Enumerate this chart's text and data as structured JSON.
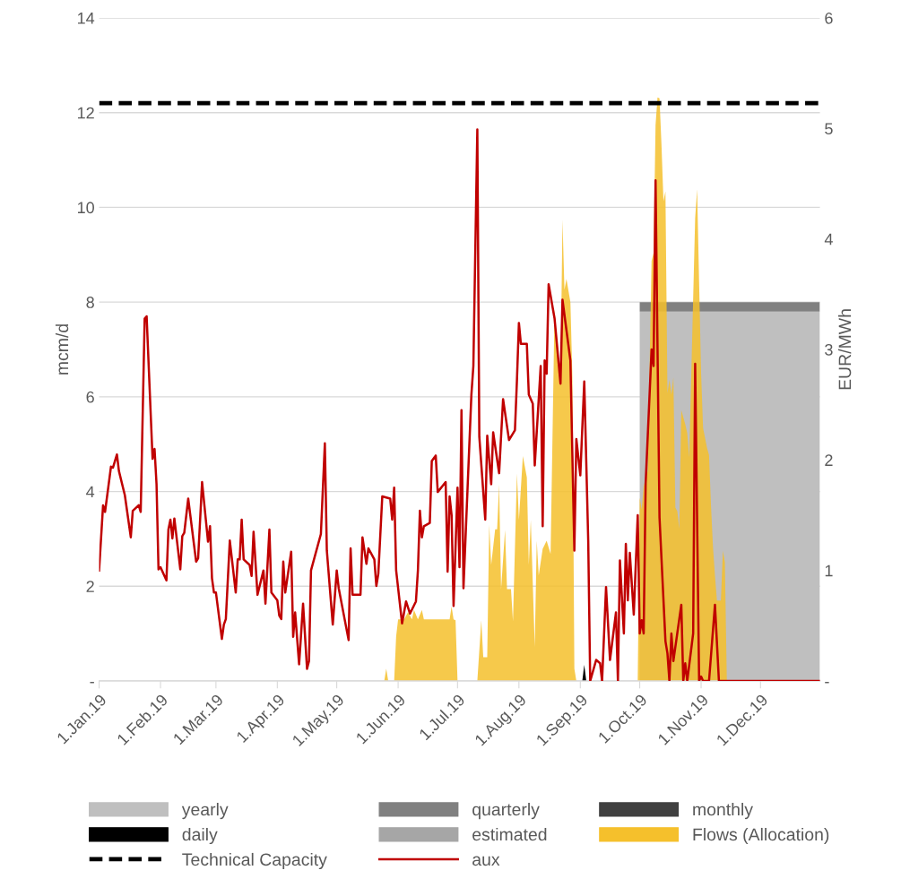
{
  "chart_data": {
    "type": "area",
    "ylabel": "mcm/d",
    "y2label": "EUR/MWh",
    "xlim": [
      "2019-01-01",
      "2019-12-31"
    ],
    "xticks": [
      {
        "value": "2019-01-01",
        "label": "1.Jan.19"
      },
      {
        "value": "2019-02-01",
        "label": "1.Feb.19"
      },
      {
        "value": "2019-03-01",
        "label": "1.Mar.19"
      },
      {
        "value": "2019-04-01",
        "label": "1.Apr.19"
      },
      {
        "value": "2019-05-01",
        "label": "1.May.19"
      },
      {
        "value": "2019-06-01",
        "label": "1.Jun.19"
      },
      {
        "value": "2019-07-01",
        "label": "1.Jul.19"
      },
      {
        "value": "2019-08-01",
        "label": "1.Aug.19"
      },
      {
        "value": "2019-09-01",
        "label": "1.Sep.19"
      },
      {
        "value": "2019-10-01",
        "label": "1.Oct.19"
      },
      {
        "value": "2019-11-01",
        "label": "1.Nov.19"
      },
      {
        "value": "2019-12-01",
        "label": "1.Dec.19"
      }
    ],
    "ylim": [
      0,
      14
    ],
    "yticks": [
      {
        "value": 0,
        "label": "-"
      },
      2,
      4,
      6,
      8,
      10,
      12,
      14
    ],
    "y2lim": [
      0,
      6
    ],
    "y2ticks": [
      {
        "value": 0,
        "label": "-"
      },
      1,
      2,
      3,
      4,
      5,
      6
    ],
    "grid": "y",
    "legend": "bottom",
    "stacked": true,
    "series": [
      {
        "name": "yearly",
        "color": "#bfbfbf",
        "x": [
          "2019-10-01",
          "2019-12-31"
        ],
        "values": [
          7.8,
          7.8
        ]
      },
      {
        "name": "quarterly",
        "color": "#808080",
        "x": [
          "2019-10-01",
          "2019-12-31"
        ],
        "values": [
          0.2,
          0.2
        ]
      },
      {
        "name": "monthly",
        "color": "#404040"
      },
      {
        "name": "daily",
        "color": "#000000",
        "x": [
          "2019-09-02",
          "2019-09-03",
          "2019-09-04"
        ],
        "values": [
          0,
          0.34,
          0
        ]
      },
      {
        "name": "estimated",
        "color": "#a6a6a6"
      },
      {
        "name": "Flows (Allocation)",
        "color": "#f5c02c",
        "x": [
          "2019-05-25",
          "2019-05-26",
          "2019-05-27",
          "2019-05-30",
          "2019-05-31",
          "2019-06-01",
          "2019-06-04",
          "2019-06-06",
          "2019-06-08",
          "2019-06-09",
          "2019-06-11",
          "2019-06-13",
          "2019-06-14",
          "2019-06-27",
          "2019-06-28",
          "2019-06-29",
          "2019-06-30",
          "2019-07-01",
          "2019-07-11",
          "2019-07-13",
          "2019-07-14",
          "2019-07-16",
          "2019-07-17",
          "2019-07-18",
          "2019-07-20",
          "2019-07-21",
          "2019-07-22",
          "2019-07-23",
          "2019-07-25",
          "2019-07-26",
          "2019-07-28",
          "2019-07-29",
          "2019-07-31",
          "2019-08-01",
          "2019-08-03",
          "2019-08-05",
          "2019-08-06",
          "2019-08-07",
          "2019-08-09",
          "2019-08-10",
          "2019-08-11",
          "2019-08-13",
          "2019-08-15",
          "2019-08-17",
          "2019-08-19",
          "2019-08-20",
          "2019-08-22",
          "2019-08-23",
          "2019-08-24",
          "2019-08-25",
          "2019-08-27",
          "2019-08-28",
          "2019-08-29",
          "2019-08-30",
          "2019-09-30",
          "2019-10-01",
          "2019-10-02",
          "2019-10-03",
          "2019-10-05",
          "2019-10-07",
          "2019-10-08",
          "2019-10-09",
          "2019-10-10",
          "2019-10-11",
          "2019-10-12",
          "2019-10-13",
          "2019-10-14",
          "2019-10-15",
          "2019-10-16",
          "2019-10-17",
          "2019-10-18",
          "2019-10-19",
          "2019-10-20",
          "2019-10-21",
          "2019-10-22",
          "2019-10-24",
          "2019-10-25",
          "2019-10-26",
          "2019-10-29",
          "2019-10-30",
          "2019-10-31",
          "2019-11-01",
          "2019-11-02",
          "2019-11-04",
          "2019-11-05",
          "2019-11-06",
          "2019-11-07",
          "2019-11-08",
          "2019-11-09",
          "2019-11-11",
          "2019-11-12",
          "2019-11-13",
          "2019-11-14"
        ],
        "values": [
          0,
          0.26,
          0,
          0,
          0.94,
          1.3,
          1.3,
          1.45,
          1.3,
          1.5,
          1.3,
          1.5,
          1.3,
          1.3,
          1.57,
          1.3,
          1.28,
          0,
          0,
          1.28,
          0.5,
          0.5,
          3.3,
          2.45,
          3.2,
          3.2,
          4.15,
          1.94,
          3.19,
          1.94,
          1.94,
          1.26,
          4.38,
          3.4,
          4.75,
          4.3,
          2.45,
          3.4,
          0.72,
          2.96,
          2.23,
          2.79,
          2.96,
          2.68,
          7.85,
          7.26,
          6.34,
          9.74,
          8.26,
          8.49,
          8.0,
          6.42,
          0.26,
          0,
          0,
          3.87,
          3.62,
          4.11,
          4.43,
          8.87,
          9.04,
          11.74,
          12.32,
          12.3,
          11.32,
          10.13,
          10.34,
          6.08,
          6.36,
          6.04,
          6.41,
          3.66,
          3.58,
          3.21,
          5.72,
          5.42,
          5.23,
          4.72,
          9.77,
          10.38,
          8.41,
          6.49,
          5.34,
          4.92,
          4.77,
          3.7,
          2.83,
          2.23,
          1.7,
          1.7,
          2.75,
          2.51,
          0
        ]
      },
      {
        "name": "Technical Capacity",
        "type": "line",
        "line_style": "dashed",
        "color": "#000000",
        "x": [
          "2019-01-01",
          "2019-12-31"
        ],
        "values": [
          12.2,
          12.2
        ]
      },
      {
        "name": "aux",
        "type": "line",
        "axis": "y2",
        "color": "#c00000",
        "x": [
          "2019-01-01",
          "2019-01-03",
          "2019-01-04",
          "2019-01-07",
          "2019-01-08",
          "2019-01-10",
          "2019-01-11",
          "2019-01-14",
          "2019-01-17",
          "2019-01-18",
          "2019-01-21",
          "2019-01-22",
          "2019-01-24",
          "2019-01-25",
          "2019-01-28",
          "2019-01-29",
          "2019-01-30",
          "2019-01-31",
          "2019-02-01",
          "2019-02-04",
          "2019-02-05",
          "2019-02-06",
          "2019-02-07",
          "2019-02-08",
          "2019-02-11",
          "2019-02-12",
          "2019-02-13",
          "2019-02-15",
          "2019-02-19",
          "2019-02-20",
          "2019-02-22",
          "2019-02-25",
          "2019-02-26",
          "2019-02-27",
          "2019-02-28",
          "2019-03-01",
          "2019-03-04",
          "2019-03-05",
          "2019-03-06",
          "2019-03-08",
          "2019-03-11",
          "2019-03-12",
          "2019-03-13",
          "2019-03-14",
          "2019-03-15",
          "2019-03-18",
          "2019-03-19",
          "2019-03-20",
          "2019-03-22",
          "2019-03-25",
          "2019-03-26",
          "2019-03-28",
          "2019-03-29",
          "2019-04-01",
          "2019-04-02",
          "2019-04-03",
          "2019-04-04",
          "2019-04-05",
          "2019-04-08",
          "2019-04-09",
          "2019-04-10",
          "2019-04-12",
          "2019-04-14",
          "2019-04-16",
          "2019-04-17",
          "2019-04-18",
          "2019-04-23",
          "2019-04-25",
          "2019-04-26",
          "2019-04-29",
          "2019-05-01",
          "2019-05-02",
          "2019-05-07",
          "2019-05-08",
          "2019-05-09",
          "2019-05-13",
          "2019-05-14",
          "2019-05-16",
          "2019-05-17",
          "2019-05-20",
          "2019-05-21",
          "2019-05-22",
          "2019-05-24",
          "2019-05-28",
          "2019-05-29",
          "2019-05-30",
          "2019-05-31",
          "2019-06-03",
          "2019-06-05",
          "2019-06-07",
          "2019-06-10",
          "2019-06-11",
          "2019-06-12",
          "2019-06-13",
          "2019-06-14",
          "2019-06-17",
          "2019-06-18",
          "2019-06-20",
          "2019-06-21",
          "2019-06-25",
          "2019-06-26",
          "2019-06-27",
          "2019-06-28",
          "2019-06-29",
          "2019-07-01",
          "2019-07-02",
          "2019-07-03",
          "2019-07-04",
          "2019-07-08",
          "2019-07-09",
          "2019-07-11",
          "2019-07-12",
          "2019-07-15",
          "2019-07-16",
          "2019-07-18",
          "2019-07-19",
          "2019-07-22",
          "2019-07-24",
          "2019-07-27",
          "2019-07-30",
          "2019-07-31",
          "2019-08-01",
          "2019-08-02",
          "2019-08-05",
          "2019-08-06",
          "2019-08-08",
          "2019-08-09",
          "2019-08-12",
          "2019-08-13",
          "2019-08-14",
          "2019-08-15",
          "2019-08-16",
          "2019-08-19",
          "2019-08-22",
          "2019-08-23",
          "2019-08-27",
          "2019-08-29",
          "2019-08-30",
          "2019-09-01",
          "2019-09-03",
          "2019-09-05",
          "2019-09-06",
          "2019-09-09",
          "2019-09-11",
          "2019-09-12",
          "2019-09-14",
          "2019-09-16",
          "2019-09-19",
          "2019-09-20",
          "2019-09-21",
          "2019-09-23",
          "2019-09-24",
          "2019-09-25",
          "2019-09-26",
          "2019-09-28",
          "2019-09-30",
          "2019-10-01",
          "2019-10-02",
          "2019-10-03",
          "2019-10-04",
          "2019-10-07",
          "2019-10-08",
          "2019-10-09",
          "2019-10-11",
          "2019-10-14",
          "2019-10-15",
          "2019-10-16",
          "2019-10-17",
          "2019-10-18",
          "2019-10-22",
          "2019-10-23",
          "2019-10-24",
          "2019-10-25",
          "2019-10-28",
          "2019-10-29",
          "2019-10-31",
          "2019-11-01",
          "2019-11-02",
          "2019-11-05",
          "2019-11-08",
          "2019-11-10",
          "2019-12-31"
        ],
        "values": [
          1.0,
          1.59,
          1.53,
          1.94,
          1.93,
          2.05,
          1.9,
          1.68,
          1.3,
          1.54,
          1.59,
          1.53,
          3.28,
          3.3,
          2.01,
          2.1,
          1.78,
          1.01,
          1.03,
          0.91,
          1.37,
          1.46,
          1.29,
          1.47,
          1.01,
          1.31,
          1.34,
          1.65,
          1.08,
          1.11,
          1.8,
          1.26,
          1.4,
          0.93,
          0.8,
          0.8,
          0.38,
          0.51,
          0.56,
          1.27,
          0.8,
          1.1,
          1.1,
          1.46,
          1.1,
          1.05,
          0.95,
          1.35,
          0.78,
          1.0,
          0.7,
          1.37,
          0.8,
          0.73,
          0.59,
          0.56,
          1.08,
          0.8,
          1.17,
          0.4,
          0.62,
          0.15,
          0.7,
          0.11,
          0.18,
          1.0,
          1.33,
          2.15,
          1.18,
          0.51,
          1.0,
          0.84,
          0.37,
          1.2,
          0.78,
          0.78,
          1.3,
          1.06,
          1.2,
          1.1,
          0.86,
          0.97,
          1.67,
          1.65,
          1.46,
          1.75,
          1.0,
          0.52,
          0.72,
          0.61,
          0.72,
          1.0,
          1.54,
          1.3,
          1.4,
          1.43,
          1.99,
          2.04,
          1.71,
          1.8,
          0.99,
          1.67,
          1.5,
          0.68,
          1.75,
          1.03,
          2.45,
          0.84,
          2.59,
          2.85,
          4.99,
          2.21,
          1.46,
          2.22,
          1.78,
          2.25,
          1.88,
          2.55,
          2.18,
          2.27,
          2.72,
          3.24,
          3.05,
          3.05,
          2.59,
          2.51,
          1.95,
          2.85,
          1.4,
          2.9,
          2.78,
          3.59,
          3.28,
          2.69,
          3.45,
          2.9,
          1.18,
          2.19,
          1.86,
          2.71,
          1.27,
          0,
          0.19,
          0.16,
          0,
          0.85,
          0.19,
          0.62,
          0,
          1.09,
          0.43,
          1.24,
          0.73,
          1.16,
          0.6,
          1.5,
          0.43,
          0.55,
          0.43,
          1.79,
          3.0,
          2.85,
          4.53,
          1.48,
          0.36,
          0.25,
          0,
          0.43,
          0.18,
          0.69,
          0,
          0.16,
          0,
          0.43,
          2.87,
          0,
          0.04,
          0,
          0,
          0.69,
          0,
          0
        ]
      }
    ]
  }
}
